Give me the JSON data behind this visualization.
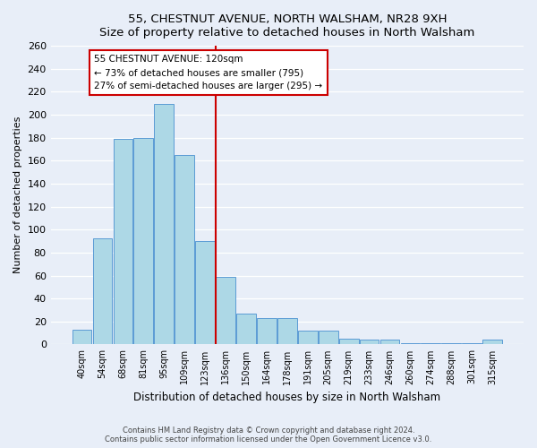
{
  "title": "55, CHESTNUT AVENUE, NORTH WALSHAM, NR28 9XH",
  "subtitle": "Size of property relative to detached houses in North Walsham",
  "xlabel": "Distribution of detached houses by size in North Walsham",
  "ylabel": "Number of detached properties",
  "bin_labels": [
    "40sqm",
    "54sqm",
    "68sqm",
    "81sqm",
    "95sqm",
    "109sqm",
    "123sqm",
    "136sqm",
    "150sqm",
    "164sqm",
    "178sqm",
    "191sqm",
    "205sqm",
    "219sqm",
    "233sqm",
    "246sqm",
    "260sqm",
    "274sqm",
    "288sqm",
    "301sqm",
    "315sqm"
  ],
  "bar_heights": [
    13,
    92,
    179,
    180,
    209,
    165,
    90,
    59,
    27,
    23,
    23,
    12,
    12,
    5,
    4,
    4,
    1,
    1,
    1,
    1,
    4
  ],
  "bar_color": "#add8e6",
  "bar_edge_color": "#5b9bd5",
  "property_line_x": 6.5,
  "property_line_color": "#cc0000",
  "annotation_title": "55 CHESTNUT AVENUE: 120sqm",
  "annotation_line1": "← 73% of detached houses are smaller (795)",
  "annotation_line2": "27% of semi-detached houses are larger (295) →",
  "annotation_box_color": "#ffffff",
  "annotation_box_edge": "#cc0000",
  "ylim": [
    0,
    260
  ],
  "yticks": [
    0,
    20,
    40,
    60,
    80,
    100,
    120,
    140,
    160,
    180,
    200,
    220,
    240,
    260
  ],
  "footer_line1": "Contains HM Land Registry data © Crown copyright and database right 2024.",
  "footer_line2": "Contains public sector information licensed under the Open Government Licence v3.0.",
  "bg_color": "#e8eef8"
}
